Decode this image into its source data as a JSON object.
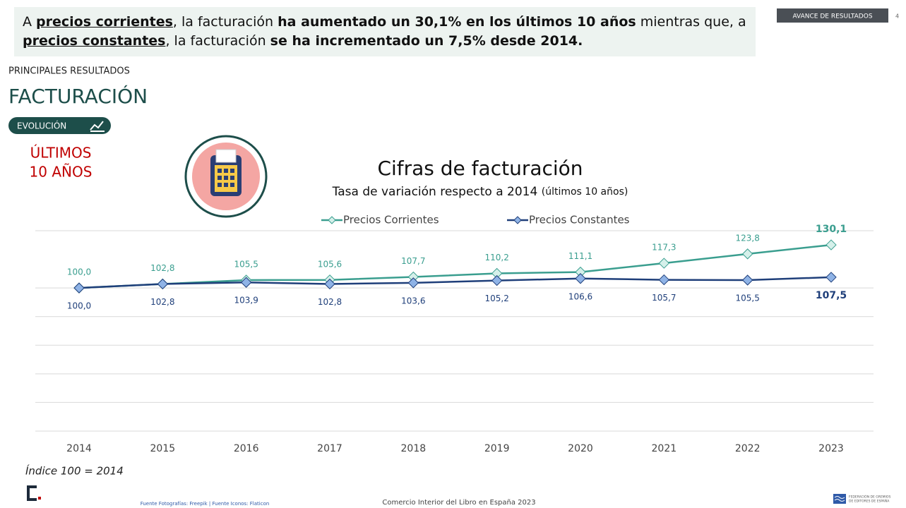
{
  "headline": [
    "A ",
    "precios corrientes",
    ", la facturación ",
    "ha aumentado un 30,1% en los últimos 10 años",
    " mientras que, a ",
    "precios constantes",
    ", la facturación ",
    "se ha incrementado un 7,5% desde 2014."
  ],
  "badge": "AVANCE DE RESULTADOS",
  "page_number": "4",
  "section": "PRINCIPALES RESULTADOS",
  "heading": "FACTURACIÓN",
  "pill": "EVOLUCIÓN",
  "period": [
    "ÚLTIMOS",
    "10 AÑOS"
  ],
  "chart_data": {
    "type": "line",
    "title": "Cifras de facturación",
    "subtitle": "Tasa de variación respecto a 2014",
    "subtitle_note": "(últimos 10 años)",
    "categories": [
      "2014",
      "2015",
      "2016",
      "2017",
      "2018",
      "2019",
      "2020",
      "2021",
      "2022",
      "2023"
    ],
    "series": [
      {
        "name": "Precios Corrientes",
        "color": "#3a9e8f",
        "values": [
          100,
          102.8,
          105.5,
          105.6,
          107.7,
          110.2,
          111.1,
          117.3,
          123.8,
          130.1
        ],
        "value_labels": [
          "100,0",
          "102,8",
          "105,5",
          "105,6",
          "107,7",
          "110,2",
          "111,1",
          "117,3",
          "123,8",
          "130,1"
        ]
      },
      {
        "name": "Precios Constantes",
        "color": "#1f3f7a",
        "values": [
          100,
          102.8,
          103.9,
          102.8,
          103.6,
          105.2,
          106.6,
          105.7,
          105.5,
          107.5
        ],
        "value_labels": [
          "100,0",
          "102,8",
          "103,9",
          "102,8",
          "103,6",
          "105,2",
          "106,6",
          "105,7",
          "105,5",
          "107,5"
        ]
      }
    ],
    "ylim": [
      0,
      140
    ],
    "yticks": [
      0,
      20,
      40,
      60,
      80,
      100,
      140
    ],
    "grid": true,
    "legend": "top",
    "note": "Índice 100 = 2014"
  },
  "footer": {
    "sources": "Fuente Fotografías: Freepik | Fuente Iconos: Flaticon",
    "center": "Comercio Interior del Libro en España 2023",
    "logo_text": [
      "FEDERACIÓN DE GREMIOS",
      "DE EDITORES DE ESPAÑA"
    ]
  }
}
